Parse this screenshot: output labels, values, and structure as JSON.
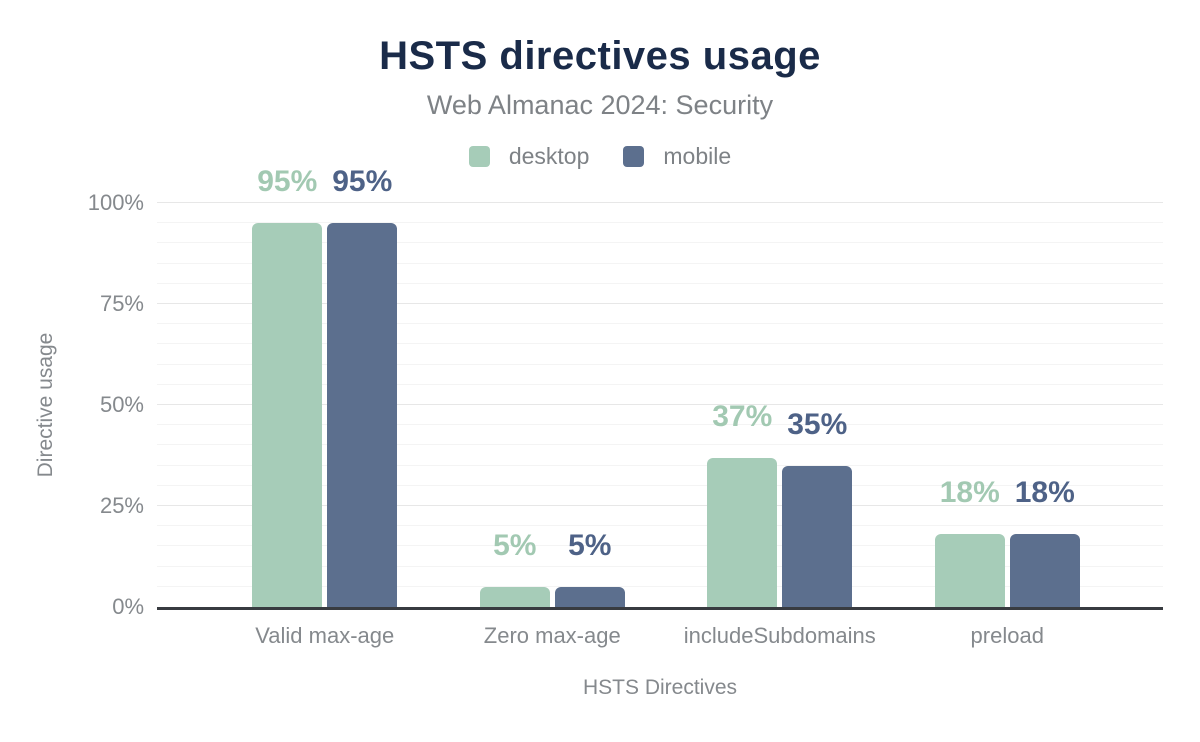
{
  "chart_data": {
    "type": "bar",
    "title": "HSTS directives usage",
    "subtitle": "Web Almanac 2024: Security",
    "xlabel": "HSTS Directives",
    "ylabel": "Directive usage",
    "categories": [
      "Valid max-age",
      "Zero max-age",
      "includeSubdomains",
      "preload"
    ],
    "series": [
      {
        "name": "desktop",
        "values": [
          95,
          5,
          37,
          18
        ],
        "color": "#a6ccb8",
        "label_color": "#a2c9b2"
      },
      {
        "name": "mobile",
        "values": [
          95,
          5,
          35,
          18
        ],
        "color": "#5c6f8e",
        "label_color": "#4e6287"
      }
    ],
    "value_suffix": "%",
    "ylim": [
      0,
      100
    ],
    "y_ticks": [
      {
        "value": 0,
        "label": "0%"
      },
      {
        "value": 25,
        "label": "25%"
      },
      {
        "value": 50,
        "label": "50%"
      },
      {
        "value": 75,
        "label": "75%"
      },
      {
        "value": 100,
        "label": "100%"
      }
    ],
    "grid": {
      "minor_step": 5,
      "major_step": 25,
      "grid_on": true
    },
    "legend_position": "top"
  },
  "colors": {
    "title": "#1a2b49",
    "subtitle": "#7e8286",
    "axis_text": "#85898d",
    "axis_line": "#383b40",
    "grid_major": "#e7e7e7",
    "grid_minor": "#f4f4f4",
    "background": "#ffffff"
  }
}
